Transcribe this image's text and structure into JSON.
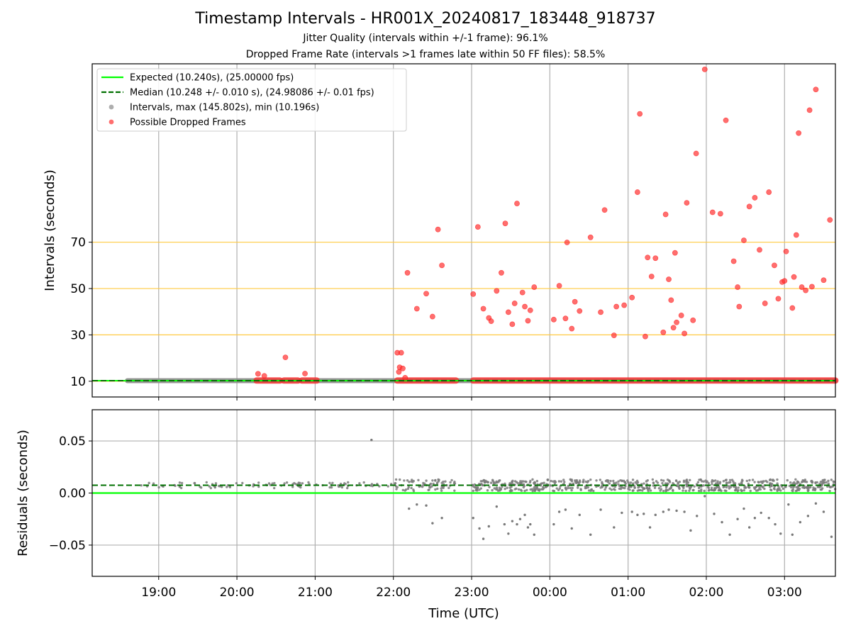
{
  "chart_data": [
    {
      "type": "scatter",
      "title": "Timestamp Intervals - HR001X_20240817_183448_918737",
      "subtitle_lines": [
        "Jitter Quality (intervals within +/-1 frame): 96.1%",
        "Dropped Frame Rate (intervals >1 frames late within 50 FF files): 58.5%"
      ],
      "xlabel": "Time (UTC)",
      "ylabel": "Intervals (seconds)",
      "x_tick_labels": [
        "19:00",
        "20:00",
        "21:00",
        "22:00",
        "23:00",
        "00:00",
        "01:00",
        "02:00",
        "03:00"
      ],
      "x_range_hours": [
        18.15,
        27.65
      ],
      "yticks": [
        10,
        30,
        50,
        70
      ],
      "ylim": [
        3.2,
        147
      ],
      "reference_lines": [
        10,
        30,
        50,
        70
      ],
      "grid": true,
      "legend_placement": "top-left",
      "legend": [
        "Expected (10.240s), (25.00000 fps)",
        "Median (10.248 +/- 0.010 s), (24.98086 +/- 0.01 fps)",
        "Intervals, max (145.802s), min (10.196s)",
        "Possible Dropped Frames"
      ],
      "expected_interval": 10.24,
      "median_interval": 10.248,
      "baseline_span_hours": [
        18.6,
        27.65
      ],
      "dropped_dense_bands_hours": [
        [
          20.25,
          20.55
        ],
        [
          20.6,
          20.78
        ],
        [
          20.83,
          21.02
        ],
        [
          22.05,
          22.8
        ],
        [
          23.02,
          27.65
        ]
      ],
      "dropped_frames": [
        [
          20.27,
          13.2
        ],
        [
          20.35,
          12.3
        ],
        [
          20.62,
          20.3
        ],
        [
          20.87,
          13.3
        ],
        [
          22.05,
          22.3
        ],
        [
          22.1,
          22.3
        ],
        [
          22.08,
          16.0
        ],
        [
          22.12,
          15.5
        ],
        [
          22.07,
          14.0
        ],
        [
          22.15,
          11.5
        ],
        [
          22.18,
          56.8
        ],
        [
          22.3,
          41.3
        ],
        [
          22.42,
          47.8
        ],
        [
          22.5,
          37.9
        ],
        [
          22.57,
          75.5
        ],
        [
          22.62,
          60.0
        ],
        [
          23.02,
          47.6
        ],
        [
          23.08,
          76.6
        ],
        [
          23.15,
          41.3
        ],
        [
          23.22,
          37.3
        ],
        [
          23.25,
          35.9
        ],
        [
          23.32,
          49.0
        ],
        [
          23.38,
          56.8
        ],
        [
          23.43,
          78.1
        ],
        [
          23.47,
          39.8
        ],
        [
          23.52,
          34.6
        ],
        [
          23.55,
          43.6
        ],
        [
          23.58,
          86.7
        ],
        [
          23.65,
          48.3
        ],
        [
          23.68,
          42.2
        ],
        [
          23.72,
          36.1
        ],
        [
          23.75,
          40.6
        ],
        [
          23.8,
          50.6
        ],
        [
          24.05,
          36.6
        ],
        [
          24.12,
          51.2
        ],
        [
          24.2,
          37.1
        ],
        [
          24.22,
          69.9
        ],
        [
          24.28,
          32.7
        ],
        [
          24.32,
          44.3
        ],
        [
          24.38,
          40.3
        ],
        [
          24.52,
          72.1
        ],
        [
          24.65,
          39.8
        ],
        [
          24.7,
          83.9
        ],
        [
          24.82,
          29.8
        ],
        [
          24.85,
          42.2
        ],
        [
          24.95,
          42.8
        ],
        [
          25.05,
          46.1
        ],
        [
          25.12,
          91.6
        ],
        [
          25.15,
          125.4
        ],
        [
          25.22,
          29.3
        ],
        [
          25.25,
          63.4
        ],
        [
          25.3,
          55.2
        ],
        [
          25.35,
          63.1
        ],
        [
          25.45,
          31.1
        ],
        [
          25.48,
          82.0
        ],
        [
          25.52,
          54.0
        ],
        [
          25.55,
          45.0
        ],
        [
          25.58,
          33.1
        ],
        [
          25.6,
          65.4
        ],
        [
          25.62,
          35.4
        ],
        [
          25.68,
          38.4
        ],
        [
          25.72,
          30.6
        ],
        [
          25.75,
          87.0
        ],
        [
          25.83,
          36.3
        ],
        [
          25.87,
          108.3
        ],
        [
          25.98,
          144.6
        ],
        [
          26.08,
          82.9
        ],
        [
          26.18,
          82.3
        ],
        [
          26.25,
          122.6
        ],
        [
          26.35,
          61.8
        ],
        [
          26.4,
          50.6
        ],
        [
          26.42,
          42.2
        ],
        [
          26.48,
          70.8
        ],
        [
          26.55,
          85.4
        ],
        [
          26.62,
          89.2
        ],
        [
          26.68,
          66.7
        ],
        [
          26.75,
          43.6
        ],
        [
          26.8,
          91.6
        ],
        [
          26.87,
          60.0
        ],
        [
          26.92,
          45.6
        ],
        [
          26.97,
          52.8
        ],
        [
          27.0,
          53.3
        ],
        [
          27.02,
          66.0
        ],
        [
          27.1,
          41.6
        ],
        [
          27.12,
          55.0
        ],
        [
          27.15,
          73.1
        ],
        [
          27.18,
          117.1
        ],
        [
          27.22,
          50.6
        ],
        [
          27.27,
          49.2
        ],
        [
          27.32,
          127.0
        ],
        [
          27.35,
          50.8
        ],
        [
          27.4,
          135.9
        ],
        [
          27.5,
          53.6
        ],
        [
          27.58,
          79.6
        ]
      ]
    },
    {
      "type": "scatter",
      "xlabel": "Time (UTC)",
      "ylabel": "Residuals (seconds)",
      "yticks": [
        0.05,
        0.0,
        -0.05
      ],
      "ytick_labels": [
        "0.05",
        "0.00",
        "−0.05"
      ],
      "ylim": [
        -0.08,
        0.08
      ],
      "grid": true,
      "expected_residual": 0.0,
      "median_residual": 0.0075,
      "outliers": [
        [
          21.72,
          0.051
        ],
        [
          22.2,
          -0.015
        ],
        [
          22.3,
          -0.011
        ],
        [
          22.42,
          -0.012
        ],
        [
          22.5,
          -0.029
        ],
        [
          22.62,
          -0.024
        ],
        [
          23.02,
          -0.024
        ],
        [
          23.1,
          -0.034
        ],
        [
          23.15,
          -0.044
        ],
        [
          23.22,
          -0.032
        ],
        [
          23.32,
          -0.013
        ],
        [
          23.42,
          -0.03
        ],
        [
          23.47,
          -0.039
        ],
        [
          23.52,
          -0.027
        ],
        [
          23.58,
          -0.03
        ],
        [
          23.62,
          -0.025
        ],
        [
          23.68,
          -0.021
        ],
        [
          23.72,
          -0.033
        ],
        [
          23.75,
          -0.03
        ],
        [
          23.8,
          -0.04
        ],
        [
          24.05,
          -0.03
        ],
        [
          24.12,
          -0.018
        ],
        [
          24.2,
          -0.016
        ],
        [
          24.28,
          -0.034
        ],
        [
          24.38,
          -0.021
        ],
        [
          24.52,
          -0.04
        ],
        [
          24.65,
          -0.016
        ],
        [
          24.82,
          -0.033
        ],
        [
          24.92,
          -0.019
        ],
        [
          25.05,
          -0.018
        ],
        [
          25.12,
          -0.021
        ],
        [
          25.2,
          -0.02
        ],
        [
          25.28,
          -0.033
        ],
        [
          25.35,
          -0.021
        ],
        [
          25.45,
          -0.018
        ],
        [
          25.52,
          -0.016
        ],
        [
          25.62,
          -0.017
        ],
        [
          25.72,
          -0.018
        ],
        [
          25.8,
          -0.036
        ],
        [
          25.88,
          -0.022
        ],
        [
          25.98,
          -0.003
        ],
        [
          26.1,
          -0.02
        ],
        [
          26.2,
          -0.028
        ],
        [
          26.3,
          -0.04
        ],
        [
          26.4,
          -0.025
        ],
        [
          26.48,
          -0.015
        ],
        [
          26.55,
          -0.033
        ],
        [
          26.62,
          -0.024
        ],
        [
          26.7,
          -0.019
        ],
        [
          26.8,
          -0.024
        ],
        [
          26.88,
          -0.03
        ],
        [
          26.95,
          -0.039
        ],
        [
          27.05,
          -0.011
        ],
        [
          27.1,
          -0.04
        ],
        [
          27.2,
          -0.028
        ],
        [
          27.3,
          -0.022
        ],
        [
          27.4,
          -0.01
        ],
        [
          27.5,
          -0.018
        ],
        [
          27.6,
          -0.042
        ]
      ]
    }
  ]
}
